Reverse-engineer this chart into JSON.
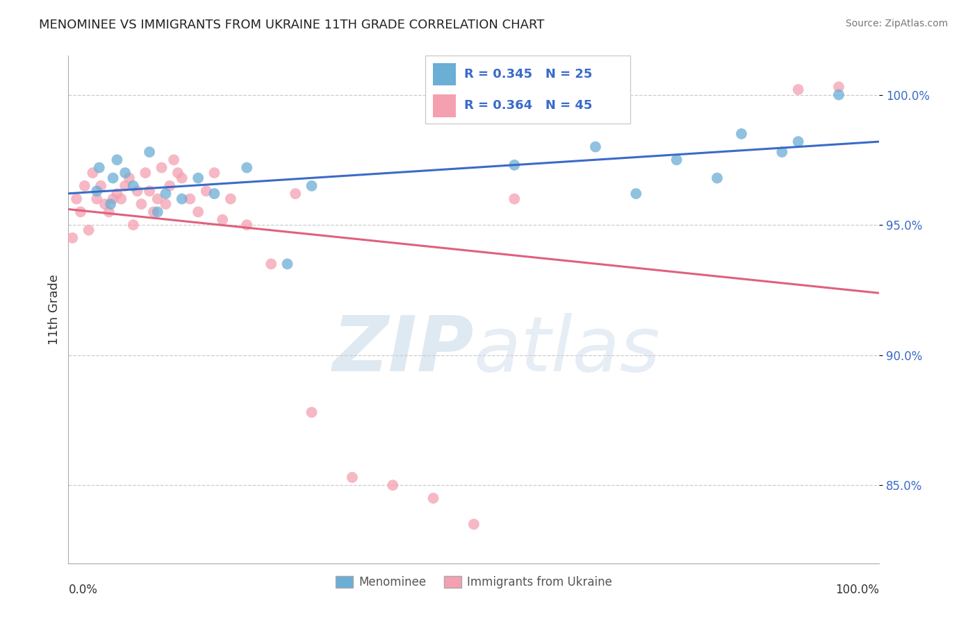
{
  "title": "MENOMINEE VS IMMIGRANTS FROM UKRAINE 11TH GRADE CORRELATION CHART",
  "source": "Source: ZipAtlas.com",
  "ylabel": "11th Grade",
  "xmin": 0.0,
  "xmax": 100.0,
  "ymin": 82.0,
  "ymax": 101.5,
  "legend_blue_r": "R = 0.345",
  "legend_blue_n": "N = 25",
  "legend_pink_r": "R = 0.364",
  "legend_pink_n": "N = 45",
  "legend_label_blue": "Menominee",
  "legend_label_pink": "Immigrants from Ukraine",
  "color_blue": "#6baed6",
  "color_pink": "#f4a0b0",
  "color_blue_line": "#3a6bc9",
  "color_pink_line": "#e0607e",
  "color_legend_text": "#3a6bc9",
  "watermark_zip": "ZIP",
  "watermark_atlas": "atlas",
  "grid_color": "#cccccc",
  "yticks": [
    85.0,
    90.0,
    95.0,
    100.0
  ],
  "ytick_labels": [
    "85.0%",
    "90.0%",
    "95.0%",
    "100.0%"
  ],
  "blue_x": [
    3.5,
    3.8,
    5.2,
    5.5,
    6.0,
    7.0,
    8.0,
    10.0,
    11.0,
    12.0,
    14.0,
    16.0,
    18.0,
    22.0,
    27.0,
    30.0,
    55.0,
    65.0,
    70.0,
    75.0,
    80.0,
    83.0,
    88.0,
    90.0,
    95.0
  ],
  "blue_y": [
    96.3,
    97.2,
    95.8,
    96.8,
    97.5,
    97.0,
    96.5,
    97.8,
    95.5,
    96.2,
    96.0,
    96.8,
    96.2,
    97.2,
    93.5,
    96.5,
    97.3,
    98.0,
    96.2,
    97.5,
    96.8,
    98.5,
    97.8,
    98.2,
    100.0
  ],
  "pink_x": [
    0.5,
    1.0,
    1.5,
    2.0,
    2.5,
    3.0,
    3.5,
    4.0,
    4.5,
    5.0,
    5.5,
    6.0,
    6.5,
    7.0,
    7.5,
    8.0,
    8.5,
    9.0,
    9.5,
    10.0,
    10.5,
    11.0,
    11.5,
    12.0,
    12.5,
    13.0,
    13.5,
    14.0,
    15.0,
    16.0,
    17.0,
    18.0,
    19.0,
    20.0,
    22.0,
    25.0,
    28.0,
    30.0,
    35.0,
    40.0,
    45.0,
    50.0,
    55.0,
    90.0,
    95.0
  ],
  "pink_y": [
    94.5,
    96.0,
    95.5,
    96.5,
    94.8,
    97.0,
    96.0,
    96.5,
    95.8,
    95.5,
    96.0,
    96.2,
    96.0,
    96.5,
    96.8,
    95.0,
    96.3,
    95.8,
    97.0,
    96.3,
    95.5,
    96.0,
    97.2,
    95.8,
    96.5,
    97.5,
    97.0,
    96.8,
    96.0,
    95.5,
    96.3,
    97.0,
    95.2,
    96.0,
    95.0,
    93.5,
    96.2,
    87.8,
    85.3,
    85.0,
    84.5,
    83.5,
    96.0,
    100.2,
    100.3
  ]
}
